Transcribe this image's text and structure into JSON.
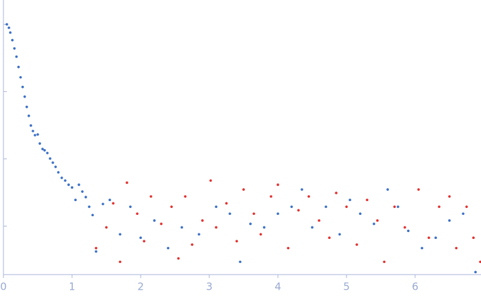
{
  "chart_data": {
    "type": "scatter",
    "log_y": true,
    "xlim": [
      0,
      6.96
    ],
    "xticks": [
      0,
      1,
      2,
      3,
      4,
      5,
      6
    ],
    "ylim": [
      1.9e-05,
      0.23
    ],
    "yticks": [
      0.0001,
      0.001,
      0.01,
      0.1
    ],
    "axis_color": "#a8b6d8",
    "series": [
      {
        "color": "#3a6fc4",
        "x": [
          0.05,
          0.08,
          0.1,
          0.13,
          0.16,
          0.19,
          0.22,
          0.25,
          0.28,
          0.31,
          0.34,
          0.37,
          0.4,
          0.43,
          0.46,
          0.5,
          0.53,
          0.57,
          0.6,
          0.64,
          0.68,
          0.72,
          0.76,
          0.8,
          0.85,
          0.9,
          0.95,
          1.0,
          1.05,
          1.1,
          1.15,
          1.2,
          1.25,
          1.3,
          1.35,
          1.45,
          1.55,
          1.7,
          1.85,
          2.0,
          2.2,
          2.4,
          2.6,
          2.85,
          3.1,
          3.3,
          3.45,
          3.6,
          3.8,
          4.0,
          4.2,
          4.35,
          4.5,
          4.7,
          4.9,
          5.05,
          5.2,
          5.4,
          5.6,
          5.75,
          5.9,
          6.1,
          6.3,
          6.5,
          6.7,
          6.88
        ],
        "values": [
          0.1,
          0.0889,
          0.0754,
          0.0582,
          0.0438,
          0.033,
          0.0232,
          0.0163,
          0.0117,
          0.00841,
          0.00592,
          0.00436,
          0.00313,
          0.00259,
          0.00225,
          0.0023,
          0.00169,
          0.0014,
          0.00134,
          0.00122,
          0.00101,
          0.000877,
          0.000761,
          0.00063,
          0.000522,
          0.000475,
          0.000412,
          0.000375,
          0.000245,
          0.000412,
          0.000326,
          0.00027,
          0.000194,
          0.000146,
          4.19e-05,
          0.000213,
          0.000245,
          7.55e-05,
          0.000194,
          6.71e-05,
          0.000121,
          4.71e-05,
          9.57e-05,
          7.55e-05,
          0.000194,
          0.000153,
          2.94e-05,
          0.000108,
          9.57e-05,
          0.000153,
          0.000194,
          0.00035,
          9.57e-05,
          0.000194,
          7.55e-05,
          0.000245,
          0.000153,
          0.000108,
          0.00035,
          0.000194,
          8.49e-05,
          4.71e-05,
          6.71e-05,
          0.000121,
          0.000153,
          2.07e-05
        ]
      },
      {
        "color": "#e0302e",
        "x": [
          1.35,
          1.5,
          1.6,
          1.7,
          1.8,
          1.95,
          2.05,
          2.15,
          2.3,
          2.45,
          2.55,
          2.65,
          2.75,
          2.9,
          3.02,
          3.1,
          3.25,
          3.4,
          3.5,
          3.65,
          3.75,
          3.9,
          4.0,
          4.15,
          4.3,
          4.45,
          4.6,
          4.75,
          4.85,
          5.0,
          5.15,
          5.3,
          5.45,
          5.55,
          5.7,
          5.85,
          6.05,
          6.2,
          6.35,
          6.5,
          6.6,
          6.75,
          6.85,
          6.95
        ],
        "values": [
          4.71e-05,
          9.57e-05,
          0.000218,
          2.94e-05,
          0.000442,
          0.000153,
          5.97e-05,
          0.000276,
          0.000108,
          0.000194,
          3.31e-05,
          0.000276,
          5.31e-05,
          0.000121,
          0.000475,
          9.57e-05,
          0.000218,
          5.97e-05,
          0.00035,
          0.000153,
          7.55e-05,
          0.000276,
          0.000412,
          4.71e-05,
          0.000172,
          0.000276,
          0.000121,
          6.71e-05,
          0.000311,
          0.000194,
          5.31e-05,
          0.000245,
          0.000121,
          2.94e-05,
          0.000194,
          9.57e-05,
          0.00035,
          6.71e-05,
          0.000194,
          0.000276,
          4.71e-05,
          0.000194,
          6.71e-05,
          2.94e-05
        ]
      }
    ]
  }
}
